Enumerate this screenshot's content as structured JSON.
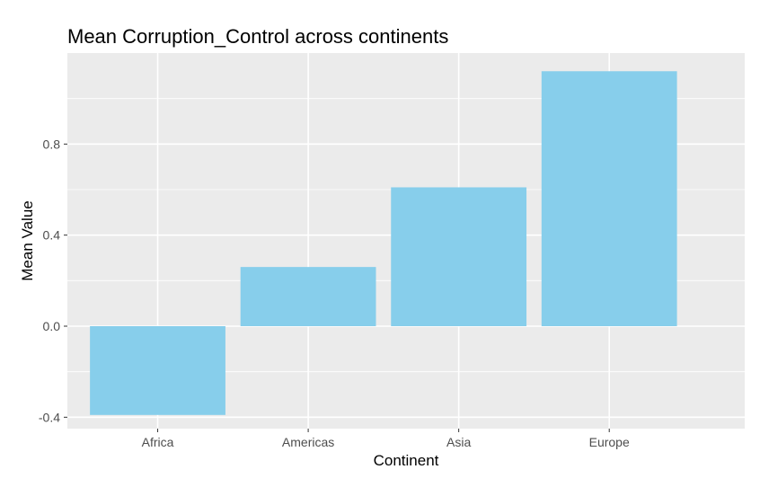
{
  "chart_data": {
    "type": "bar",
    "title": "Mean Corruption_Control across continents",
    "xlabel": "Continent",
    "ylabel": "Mean Value",
    "categories": [
      "Africa",
      "Americas",
      "Asia",
      "Europe"
    ],
    "values": [
      -0.39,
      0.26,
      0.61,
      1.12
    ],
    "ylim": [
      -0.45,
      1.2
    ],
    "yticks": [
      "-0.4",
      "0.0",
      "0.4",
      "0.8"
    ],
    "grid": true,
    "legend": "none",
    "colors": {
      "bar": "#87CEEB",
      "panel": "#EBEBEB",
      "grid": "#FFFFFF",
      "tick_text": "#4D4D4D"
    }
  }
}
